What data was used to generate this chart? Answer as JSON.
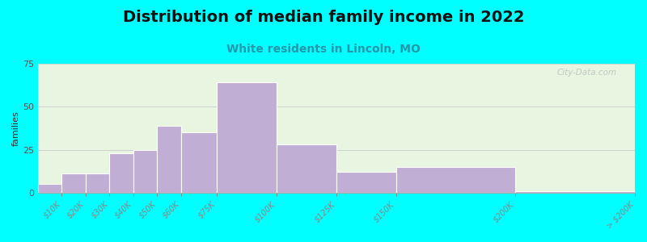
{
  "title": "Distribution of median family income in 2022",
  "subtitle": "White residents in Lincoln, MO",
  "ylabel": "families",
  "bar_color": "#c0aed4",
  "bar_edge_color": "#ffffff",
  "ylim": [
    0,
    75
  ],
  "yticks": [
    0,
    25,
    50,
    75
  ],
  "background_color": "#00ffff",
  "title_fontsize": 14,
  "subtitle_fontsize": 10,
  "subtitle_color": "#2299aa",
  "ylabel_fontsize": 8,
  "watermark": "City-Data.com",
  "grid_color": "#cccccc",
  "bin_edges": [
    0,
    10,
    20,
    30,
    40,
    50,
    60,
    75,
    100,
    125,
    150,
    200,
    250
  ],
  "values": [
    5,
    11,
    11,
    23,
    25,
    39,
    35,
    64,
    28,
    12,
    15,
    1
  ],
  "tick_labels": [
    "$10K",
    "$20K",
    "$30K",
    "$40K",
    "$50K",
    "$60K",
    "$75K",
    "$100K",
    "$125K",
    "$150K",
    "$200K",
    "> $200K"
  ],
  "plot_bg_color_top": "#eaf4e0",
  "plot_bg_color_bottom": "#ddf0e8"
}
